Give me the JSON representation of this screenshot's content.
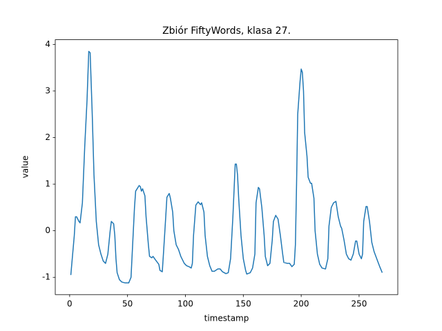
{
  "chart_data": {
    "type": "line",
    "title": "Zbiór FiftyWords, klasa 27.",
    "x_label": "timestamp",
    "y_label": "value",
    "x": [
      1,
      4,
      5,
      6,
      8,
      9,
      11,
      13,
      15,
      16.5,
      17.7,
      19.5,
      21,
      23,
      25,
      27,
      29,
      31,
      33,
      35,
      36,
      38,
      39,
      40,
      41,
      43,
      45,
      48,
      51,
      53,
      54,
      56,
      57,
      59,
      60,
      61,
      62,
      63,
      65,
      66,
      68,
      69,
      71,
      72,
      74,
      77,
      78,
      80,
      81,
      83,
      84,
      86,
      87,
      89,
      90,
      92,
      94,
      96,
      99,
      101,
      103,
      105,
      106,
      107,
      109,
      111,
      113,
      114,
      116,
      117,
      119,
      121,
      123,
      125,
      128,
      130,
      132,
      135,
      137,
      139,
      141,
      143,
      144,
      145,
      146,
      148,
      150,
      152,
      153,
      156,
      158,
      160,
      161,
      163,
      164,
      166,
      168,
      169,
      171,
      173,
      175,
      176,
      178,
      180,
      182,
      184,
      185,
      188,
      190,
      192,
      194,
      195,
      196,
      197,
      199,
      200,
      201,
      202,
      203,
      205,
      206,
      208,
      209,
      211,
      212,
      214,
      216,
      218,
      221,
      223,
      224,
      226,
      228,
      230,
      232,
      234,
      235,
      237,
      239,
      241,
      243,
      245,
      247,
      248,
      250,
      252,
      253,
      254,
      256,
      257,
      259,
      261,
      263,
      266,
      268,
      270
    ],
    "series": [
      {
        "name": "value",
        "color": "#1f77b4",
        "values": [
          -0.95,
          -0.1,
          0.3,
          0.3,
          0.2,
          0.17,
          0.6,
          1.8,
          2.8,
          3.85,
          3.82,
          2.5,
          1.2,
          0.2,
          -0.3,
          -0.5,
          -0.65,
          -0.7,
          -0.5,
          0.0,
          0.2,
          0.15,
          -0.1,
          -0.6,
          -0.9,
          -1.05,
          -1.1,
          -1.12,
          -1.12,
          -1.0,
          -0.5,
          0.5,
          0.85,
          0.93,
          0.97,
          0.95,
          0.85,
          0.9,
          0.75,
          0.3,
          -0.3,
          -0.55,
          -0.58,
          -0.55,
          -0.62,
          -0.72,
          -0.85,
          -0.88,
          -0.5,
          0.3,
          0.72,
          0.8,
          0.7,
          0.4,
          0.0,
          -0.3,
          -0.4,
          -0.55,
          -0.7,
          -0.75,
          -0.77,
          -0.8,
          -0.7,
          -0.1,
          0.55,
          0.62,
          0.56,
          0.6,
          0.4,
          -0.1,
          -0.55,
          -0.75,
          -0.87,
          -0.87,
          -0.82,
          -0.82,
          -0.88,
          -0.92,
          -0.9,
          -0.6,
          0.3,
          1.43,
          1.43,
          1.2,
          0.7,
          -0.1,
          -0.6,
          -0.85,
          -0.93,
          -0.9,
          -0.8,
          -0.5,
          0.6,
          0.93,
          0.9,
          0.5,
          -0.1,
          -0.55,
          -0.75,
          -0.7,
          -0.2,
          0.2,
          0.33,
          0.25,
          -0.1,
          -0.5,
          -0.68,
          -0.7,
          -0.7,
          -0.77,
          -0.72,
          -0.3,
          1.0,
          2.5,
          3.2,
          3.47,
          3.4,
          3.0,
          2.1,
          1.6,
          1.15,
          1.02,
          1.02,
          0.7,
          0.0,
          -0.5,
          -0.72,
          -0.8,
          -0.82,
          -0.6,
          0.1,
          0.5,
          0.6,
          0.63,
          0.3,
          0.1,
          0.05,
          -0.2,
          -0.5,
          -0.6,
          -0.63,
          -0.5,
          -0.22,
          -0.22,
          -0.5,
          -0.6,
          -0.5,
          0.2,
          0.52,
          0.52,
          0.2,
          -0.25,
          -0.45,
          -0.65,
          -0.78,
          -0.9
        ]
      }
    ],
    "xlim": [
      -12.45,
      283.45
    ],
    "xticks": [
      0,
      50,
      100,
      150,
      200,
      250
    ],
    "ylim": [
      -1.37,
      4.1
    ],
    "yticks": [
      -1,
      0,
      1,
      2,
      3,
      4
    ]
  }
}
